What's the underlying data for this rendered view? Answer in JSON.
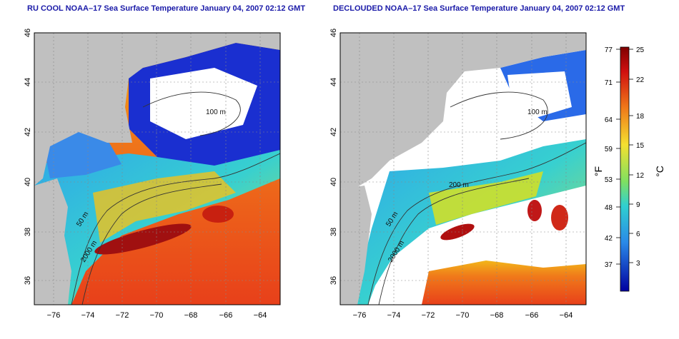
{
  "panels": [
    {
      "title": "RU COOL NOAA–17 Sea Surface Temperature January 04, 2007 02:12 GMT",
      "contour_labels": [
        "100 m",
        "50 m",
        "2000 m"
      ],
      "y_ticks": [
        "36",
        "38",
        "40",
        "42",
        "44",
        "46"
      ],
      "x_ticks": [
        "−76",
        "−74",
        "−72",
        "−70",
        "−68",
        "−66",
        "−64"
      ]
    },
    {
      "title": "DECLOUDED NOAA–17 Sea Surface Temperature January 04, 2007 02:12 GMT",
      "contour_labels": [
        "100 m",
        "200 m",
        "50 m",
        "2000 m"
      ],
      "y_ticks": [
        "36",
        "38",
        "40",
        "42",
        "44",
        "46"
      ],
      "x_ticks": [
        "−76",
        "−74",
        "−72",
        "−70",
        "−68",
        "−66",
        "−64"
      ]
    }
  ],
  "colorbar": {
    "f_label": "°F",
    "c_label": "°C",
    "f_ticks": [
      "77",
      "71",
      "64",
      "59",
      "53",
      "48",
      "42",
      "37"
    ],
    "c_ticks": [
      "25",
      "22",
      "18",
      "15",
      "12",
      "9",
      "6",
      "3"
    ]
  },
  "colors": {
    "land": "#c0c0c0",
    "title": "#1a1aa8",
    "cloud": "#ffffff",
    "warm": "#e8401a",
    "cold": "#1a2fd0"
  }
}
